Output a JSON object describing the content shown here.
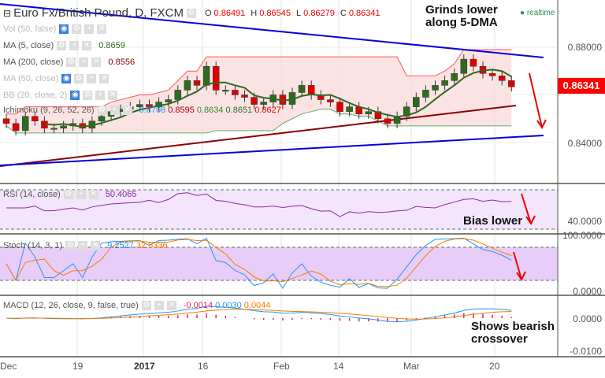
{
  "header": {
    "title": "Euro Fx/British Pound, D, FXCM",
    "o_label": "O",
    "o": "0.86491",
    "h_label": "H",
    "h": "0.86545",
    "l_label": "L",
    "l": "0.86279",
    "c_label": "C",
    "c": "0.86341",
    "realtime": "realtime"
  },
  "indicators": {
    "vol": "Vol (50, false)",
    "ma5": {
      "label": "MA (5, close)",
      "value": "0.8659"
    },
    "ma200": {
      "label": "MA (200, close)",
      "value": "0.8556"
    },
    "ma50": "MA (50, close)",
    "bb": "BB (20, close, 2)",
    "ichimoku": {
      "label": "Ichimoku (9, 26, 52, 26)",
      "values": [
        "0.8708",
        "0.8595",
        "0.8634",
        "0.8651",
        "0.8627"
      ]
    },
    "rsi": {
      "label": "RSI (14, close)",
      "value": "50.4065"
    },
    "stoch": {
      "label": "Stoch (14, 3, 1)",
      "k": "9.2527",
      "d": "32.5336"
    },
    "macd": {
      "label": "MACD (12, 26, close, 9, false, true)",
      "values": [
        "-0.0014",
        "0.0030",
        "0.0044"
      ]
    }
  },
  "annotations": {
    "main_1": "Grinds lower",
    "main_2": "along 5-DMA",
    "rsi": "Bias lower",
    "macd_1": "Shows bearish",
    "macd_2": "crossover"
  },
  "price_axis": {
    "current": "0.86341",
    "ticks": [
      "0.88000",
      "0.84000"
    ],
    "rsi_tick": "40.0000",
    "stoch_ticks": [
      "100.0000",
      "0.0000"
    ],
    "macd_ticks": [
      "0.0000",
      "-0.0100"
    ]
  },
  "time_axis": [
    "Dec",
    "19",
    "2017",
    "16",
    "Feb",
    "14",
    "Mar",
    "20"
  ],
  "chart_data": {
    "type": "candlestick",
    "closes": [
      0.848,
      0.845,
      0.851,
      0.849,
      0.846,
      0.846,
      0.847,
      0.848,
      0.846,
      0.849,
      0.851,
      0.853,
      0.854,
      0.855,
      0.856,
      0.855,
      0.857,
      0.858,
      0.862,
      0.866,
      0.864,
      0.872,
      0.862,
      0.862,
      0.86,
      0.859,
      0.856,
      0.857,
      0.86,
      0.856,
      0.861,
      0.864,
      0.86,
      0.858,
      0.857,
      0.853,
      0.855,
      0.852,
      0.853,
      0.85,
      0.848,
      0.851,
      0.855,
      0.859,
      0.862,
      0.864,
      0.866,
      0.869,
      0.875,
      0.872,
      0.869,
      0.868,
      0.866,
      0.8634
    ],
    "up_color": "#2e6b1f",
    "down_color": "#e00000"
  }
}
